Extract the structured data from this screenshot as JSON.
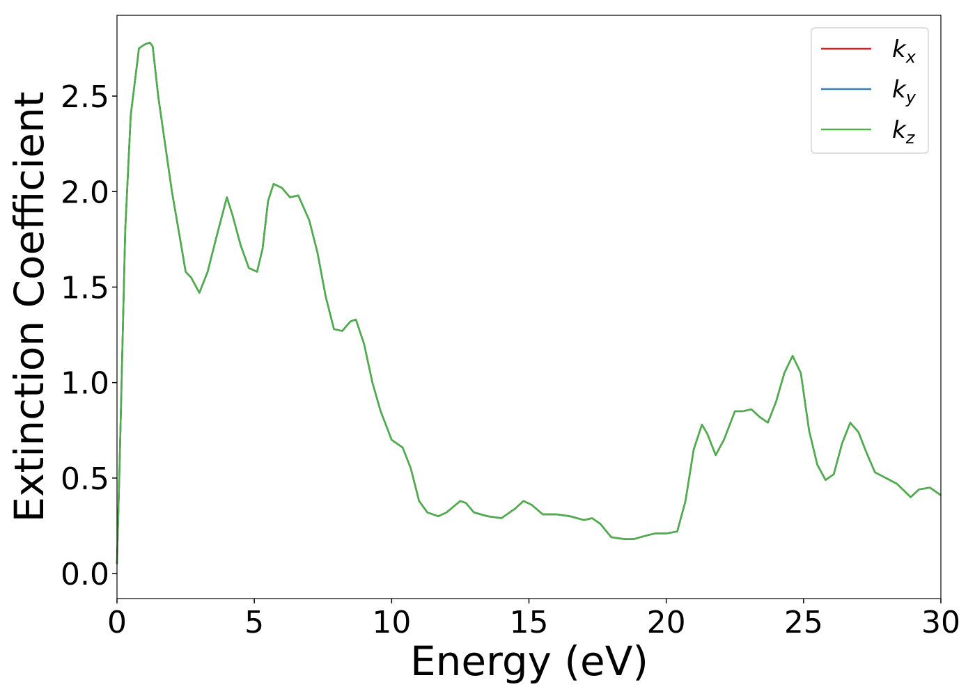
{
  "chart_data": {
    "type": "line",
    "xlabel": "Energy (eV)",
    "ylabel": "Extinction Coefficient",
    "xlim": [
      0,
      30
    ],
    "ylim": [
      -0.131,
      2.923
    ],
    "xticks": [
      0,
      5,
      10,
      15,
      20,
      25,
      30
    ],
    "yticks": [
      {
        "value": 0,
        "label": "0.0"
      },
      0.5,
      {
        "value": 1,
        "label": "1.0"
      },
      1.5,
      {
        "value": 2,
        "label": "2.0"
      },
      2.5
    ],
    "legend": "upper right",
    "x": [
      0,
      0.1,
      0.3,
      0.5,
      0.8,
      1.0,
      1.2,
      1.3,
      1.5,
      1.8,
      2.0,
      2.3,
      2.5,
      2.7,
      3.0,
      3.3,
      3.6,
      4.0,
      4.2,
      4.5,
      4.8,
      5.1,
      5.3,
      5.5,
      5.7,
      6.0,
      6.3,
      6.6,
      7.0,
      7.3,
      7.6,
      7.9,
      8.2,
      8.5,
      8.7,
      9.0,
      9.3,
      9.6,
      10.0,
      10.4,
      10.7,
      11.0,
      11.3,
      11.7,
      12.0,
      12.5,
      12.7,
      13.0,
      13.5,
      14.0,
      14.5,
      14.8,
      15.1,
      15.5,
      16.0,
      16.5,
      17.0,
      17.3,
      17.6,
      18.0,
      18.5,
      18.8,
      19.3,
      19.6,
      20.0,
      20.4,
      20.7,
      21.0,
      21.3,
      21.5,
      21.8,
      22.1,
      22.5,
      22.8,
      23.1,
      23.4,
      23.7,
      24.0,
      24.3,
      24.6,
      24.9,
      25.2,
      25.5,
      25.8,
      26.1,
      26.4,
      26.7,
      27.0,
      27.3,
      27.6,
      28.0,
      28.4,
      28.9,
      29.2,
      29.6,
      30.0
    ],
    "series": [
      {
        "name": "kx",
        "color": "#e41a1c",
        "values": [
          0.05,
          0.6,
          1.8,
          2.4,
          2.75,
          2.77,
          2.78,
          2.76,
          2.5,
          2.2,
          2.0,
          1.75,
          1.58,
          1.55,
          1.47,
          1.58,
          1.75,
          1.97,
          1.88,
          1.72,
          1.6,
          1.58,
          1.7,
          1.95,
          2.04,
          2.02,
          1.97,
          1.98,
          1.85,
          1.68,
          1.45,
          1.28,
          1.27,
          1.32,
          1.33,
          1.2,
          1.0,
          0.85,
          0.7,
          0.66,
          0.55,
          0.38,
          0.32,
          0.3,
          0.32,
          0.38,
          0.37,
          0.32,
          0.3,
          0.29,
          0.34,
          0.38,
          0.36,
          0.31,
          0.31,
          0.3,
          0.28,
          0.29,
          0.26,
          0.19,
          0.18,
          0.18,
          0.2,
          0.21,
          0.21,
          0.22,
          0.38,
          0.65,
          0.78,
          0.73,
          0.62,
          0.7,
          0.85,
          0.85,
          0.86,
          0.82,
          0.79,
          0.9,
          1.05,
          1.14,
          1.05,
          0.75,
          0.57,
          0.49,
          0.52,
          0.68,
          0.79,
          0.74,
          0.63,
          0.53,
          0.5,
          0.47,
          0.4,
          0.44,
          0.45,
          0.41
        ]
      },
      {
        "name": "ky",
        "color": "#377eb8",
        "values": [
          0.05,
          0.6,
          1.8,
          2.4,
          2.75,
          2.77,
          2.78,
          2.76,
          2.5,
          2.2,
          2.0,
          1.75,
          1.58,
          1.55,
          1.47,
          1.58,
          1.75,
          1.97,
          1.88,
          1.72,
          1.6,
          1.58,
          1.7,
          1.95,
          2.04,
          2.02,
          1.97,
          1.98,
          1.85,
          1.68,
          1.45,
          1.28,
          1.27,
          1.32,
          1.33,
          1.2,
          1.0,
          0.85,
          0.7,
          0.66,
          0.55,
          0.38,
          0.32,
          0.3,
          0.32,
          0.38,
          0.37,
          0.32,
          0.3,
          0.29,
          0.34,
          0.38,
          0.36,
          0.31,
          0.31,
          0.3,
          0.28,
          0.29,
          0.26,
          0.19,
          0.18,
          0.18,
          0.2,
          0.21,
          0.21,
          0.22,
          0.38,
          0.65,
          0.78,
          0.73,
          0.62,
          0.7,
          0.85,
          0.85,
          0.86,
          0.82,
          0.79,
          0.9,
          1.05,
          1.14,
          1.05,
          0.75,
          0.57,
          0.49,
          0.52,
          0.68,
          0.79,
          0.74,
          0.63,
          0.53,
          0.5,
          0.47,
          0.4,
          0.44,
          0.45,
          0.41
        ]
      },
      {
        "name": "kz",
        "color": "#4daf4a",
        "values": [
          0.05,
          0.6,
          1.8,
          2.4,
          2.75,
          2.77,
          2.78,
          2.76,
          2.5,
          2.2,
          2.0,
          1.75,
          1.58,
          1.55,
          1.47,
          1.58,
          1.75,
          1.97,
          1.88,
          1.72,
          1.6,
          1.58,
          1.7,
          1.95,
          2.04,
          2.02,
          1.97,
          1.98,
          1.85,
          1.68,
          1.45,
          1.28,
          1.27,
          1.32,
          1.33,
          1.2,
          1.0,
          0.85,
          0.7,
          0.66,
          0.55,
          0.38,
          0.32,
          0.3,
          0.32,
          0.38,
          0.37,
          0.32,
          0.3,
          0.29,
          0.34,
          0.38,
          0.36,
          0.31,
          0.31,
          0.3,
          0.28,
          0.29,
          0.26,
          0.19,
          0.18,
          0.18,
          0.2,
          0.21,
          0.21,
          0.22,
          0.38,
          0.65,
          0.78,
          0.73,
          0.62,
          0.7,
          0.85,
          0.85,
          0.86,
          0.82,
          0.79,
          0.9,
          1.05,
          1.14,
          1.05,
          0.75,
          0.57,
          0.49,
          0.52,
          0.68,
          0.79,
          0.74,
          0.63,
          0.53,
          0.5,
          0.47,
          0.4,
          0.44,
          0.45,
          0.41
        ]
      }
    ]
  }
}
